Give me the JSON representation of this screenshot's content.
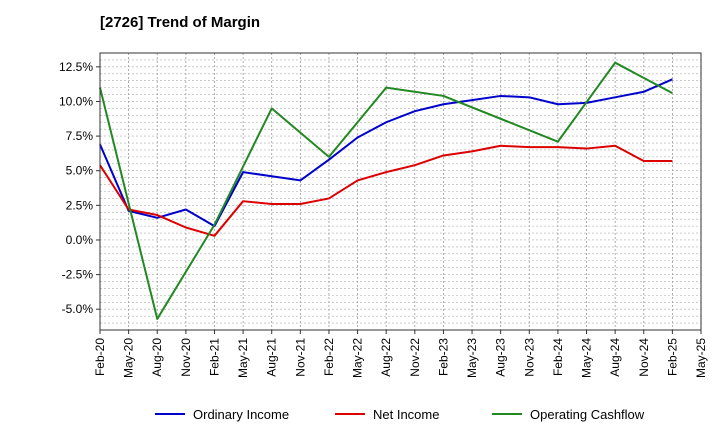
{
  "chart_data": {
    "type": "line",
    "title": "[2726]  Trend of Margin",
    "xlabel": "",
    "ylabel": "",
    "x": [
      "Feb-20",
      "May-20",
      "Aug-20",
      "Nov-20",
      "Feb-21",
      "May-21",
      "Aug-21",
      "Nov-21",
      "Feb-22",
      "May-22",
      "Aug-22",
      "Nov-22",
      "Feb-23",
      "May-23",
      "Aug-23",
      "Nov-23",
      "Feb-24",
      "May-24",
      "Aug-24",
      "Nov-24",
      "Feb-25",
      "May-25"
    ],
    "ylim": [
      -6.5,
      13.5
    ],
    "yticks": [
      12.5,
      10.0,
      7.5,
      5.0,
      2.5,
      0.0,
      -2.5,
      -5.0
    ],
    "ytick_labels": [
      "12.5%",
      "10.0%",
      "7.5%",
      "5.0%",
      "2.5%",
      "0.0%",
      "-2.5%",
      "-5.0%"
    ],
    "grid": true,
    "legend_position": "bottom",
    "series": [
      {
        "name": "Ordinary Income",
        "color": "#0000cc",
        "values": [
          6.9,
          2.1,
          1.6,
          2.2,
          1.0,
          4.9,
          4.6,
          4.3,
          5.8,
          7.4,
          8.5,
          9.3,
          9.8,
          10.1,
          10.4,
          10.3,
          9.8,
          9.9,
          10.3,
          10.7,
          11.6,
          null
        ]
      },
      {
        "name": "Net Income",
        "color": "#dd0000",
        "values": [
          5.4,
          2.2,
          1.8,
          0.9,
          0.3,
          2.8,
          2.6,
          2.6,
          3.0,
          4.3,
          4.9,
          5.4,
          6.1,
          6.4,
          6.8,
          6.7,
          6.7,
          6.6,
          6.8,
          5.7,
          5.7,
          null
        ]
      },
      {
        "name": "Operating Cashflow",
        "color": "#228822",
        "values": [
          11.0,
          null,
          -5.7,
          null,
          1.1,
          null,
          9.5,
          null,
          6.0,
          null,
          11.0,
          null,
          10.4,
          null,
          null,
          null,
          7.1,
          null,
          12.8,
          null,
          10.6,
          null
        ]
      }
    ]
  }
}
